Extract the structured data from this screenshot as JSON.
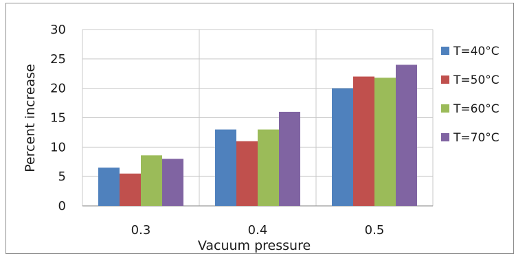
{
  "chart_data": {
    "type": "bar",
    "title": "",
    "xlabel": "Vacuum pressure",
    "ylabel": "Percent increase",
    "categories": [
      "0.3",
      "0.4",
      "0.5"
    ],
    "ylim": [
      0,
      30
    ],
    "yticks": [
      "0",
      "5",
      "10",
      "15",
      "20",
      "25",
      "30"
    ],
    "grid": true,
    "legend_position": "right",
    "series": [
      {
        "name": "T=40°C",
        "color": "#4f81bd",
        "values": [
          6.5,
          13.0,
          20.0
        ]
      },
      {
        "name": "T=50°C",
        "color": "#c0504d",
        "values": [
          5.5,
          11.0,
          22.0
        ]
      },
      {
        "name": "T=60°C",
        "color": "#9bbb59",
        "values": [
          8.6,
          13.0,
          21.8
        ]
      },
      {
        "name": "T=70°C",
        "color": "#8064a2",
        "values": [
          8.0,
          16.0,
          24.0
        ]
      }
    ]
  }
}
